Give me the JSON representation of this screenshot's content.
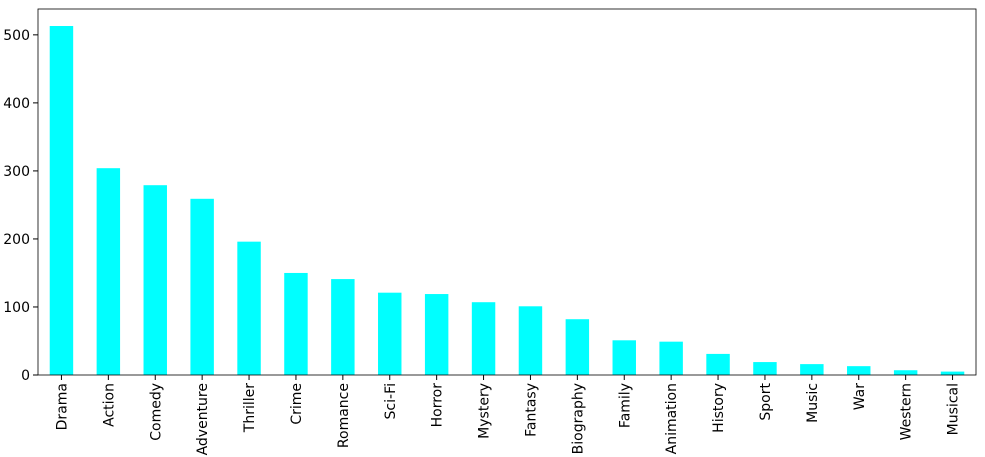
{
  "chart_data": {
    "type": "bar",
    "categories": [
      "Drama",
      "Action",
      "Comedy",
      "Adventure",
      "Thriller",
      "Crime",
      "Romance",
      "Sci-Fi",
      "Horror",
      "Mystery",
      "Fantasy",
      "Biography",
      "Family",
      "Animation",
      "History",
      "Sport",
      "Music",
      "War",
      "Western",
      "Musical"
    ],
    "values": [
      513,
      304,
      279,
      259,
      196,
      150,
      141,
      121,
      119,
      107,
      101,
      82,
      51,
      49,
      31,
      19,
      16,
      13,
      7,
      5
    ],
    "color": "#00ffff",
    "ylim": [
      0,
      538
    ],
    "yticks": [
      0,
      100,
      200,
      300,
      400,
      500
    ],
    "grid": false
  }
}
